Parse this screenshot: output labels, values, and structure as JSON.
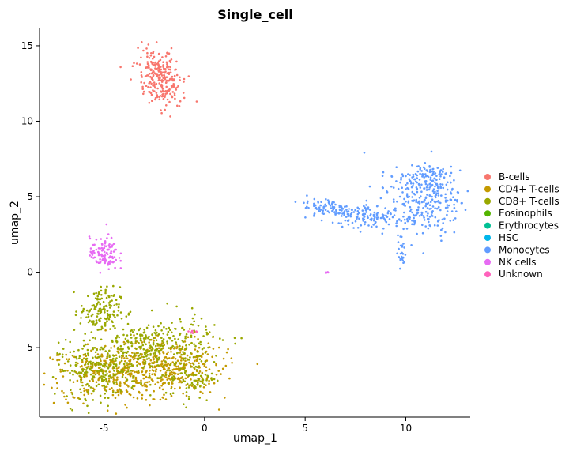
{
  "chart_data": {
    "type": "scatter",
    "title": "Single_cell",
    "xlabel": "umap_1",
    "ylabel": "umap_2",
    "xlim": [
      -8.2,
      13.2
    ],
    "ylim": [
      -9.6,
      16.2
    ],
    "xticks": [
      -5,
      0,
      5,
      10
    ],
    "yticks": [
      -5,
      0,
      5,
      10,
      15
    ],
    "grid": false,
    "legend_position": "right",
    "series": [
      {
        "name": "B-cells",
        "color": "#F8766D",
        "clusters": [
          {
            "cx": -2.2,
            "cy": 12.9,
            "sx": 0.5,
            "sy": 1.0,
            "rot": 0.25,
            "n": 260
          }
        ]
      },
      {
        "name": "CD4+ T-cells",
        "color": "#C49A00",
        "clusters": [
          {
            "cx": -4.0,
            "cy": -6.8,
            "sx": 2.1,
            "sy": 0.9,
            "rot": 0.0,
            "n": 420
          },
          {
            "cx": -1.5,
            "cy": -6.1,
            "sx": 1.2,
            "sy": 1.0,
            "rot": 0.0,
            "n": 240
          }
        ]
      },
      {
        "name": "CD8+ T-cells",
        "color": "#99A800",
        "clusters": [
          {
            "cx": -5.3,
            "cy": -6.5,
            "sx": 1.0,
            "sy": 0.9,
            "rot": 0.0,
            "n": 220
          },
          {
            "cx": -2.6,
            "cy": -4.9,
            "sx": 1.5,
            "sy": 0.9,
            "rot": 0.2,
            "n": 300
          },
          {
            "cx": -5.2,
            "cy": -2.6,
            "sx": 0.5,
            "sy": 0.8,
            "rot": 0.0,
            "n": 150
          },
          {
            "cx": -0.7,
            "cy": -6.8,
            "sx": 0.6,
            "sy": 0.9,
            "rot": 0.0,
            "n": 90
          }
        ]
      },
      {
        "name": "Eosinophils",
        "color": "#53B400",
        "clusters": []
      },
      {
        "name": "Erythrocytes",
        "color": "#00C094",
        "clusters": []
      },
      {
        "name": "HSC",
        "color": "#00B6EB",
        "clusters": []
      },
      {
        "name": "Monocytes",
        "color": "#619CFF",
        "clusters": [
          {
            "cx": 6.3,
            "cy": 4.2,
            "sx": 0.7,
            "sy": 0.35,
            "rot": -0.15,
            "n": 90
          },
          {
            "cx": 8.4,
            "cy": 3.7,
            "sx": 0.9,
            "sy": 0.4,
            "rot": -0.1,
            "n": 120
          },
          {
            "cx": 10.8,
            "cy": 4.7,
            "sx": 0.9,
            "sy": 1.1,
            "rot": 0.3,
            "n": 260
          },
          {
            "cx": 11.2,
            "cy": 6.3,
            "sx": 0.6,
            "sy": 0.6,
            "rot": 0.0,
            "n": 90
          },
          {
            "cx": 9.8,
            "cy": 1.3,
            "sx": 0.1,
            "sy": 0.5,
            "rot": 0.0,
            "n": 25
          }
        ]
      },
      {
        "name": "NK cells",
        "color": "#E76BF3",
        "clusters": [
          {
            "cx": -5.0,
            "cy": 1.2,
            "sx": 0.35,
            "sy": 0.55,
            "rot": 0.0,
            "n": 110
          },
          {
            "cx": 6.1,
            "cy": 0.0,
            "sx": 0.05,
            "sy": 0.05,
            "rot": 0.0,
            "n": 4
          }
        ]
      },
      {
        "name": "Unknown",
        "color": "#FF62BC",
        "clusters": [
          {
            "cx": -0.6,
            "cy": -3.9,
            "sx": 0.15,
            "sy": 0.1,
            "rot": 0.0,
            "n": 6
          }
        ]
      }
    ]
  }
}
